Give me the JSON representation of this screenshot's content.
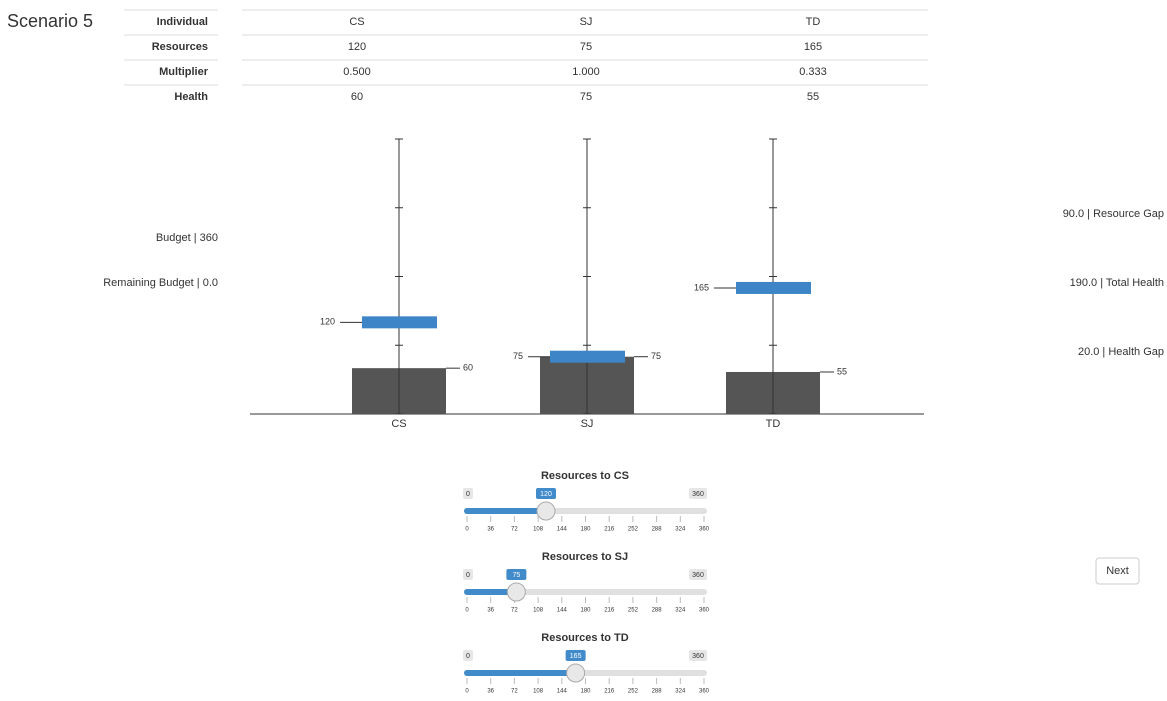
{
  "header": {
    "title": "Scenario 5"
  },
  "table": {
    "rows": [
      [
        "Individual",
        "CS",
        "SJ",
        "TD"
      ],
      [
        "Resources",
        "120",
        "75",
        "165"
      ],
      [
        "Multiplier",
        "0.500",
        "1.000",
        "0.333"
      ],
      [
        "Health",
        "60",
        "75",
        "55"
      ]
    ]
  },
  "chart": {
    "type": "bar",
    "categories": [
      "CS",
      "SJ",
      "TD"
    ],
    "health": {
      "color": "#555555",
      "values": [
        60,
        75,
        55
      ]
    },
    "resources": {
      "color": "#3d85c6",
      "values": [
        120,
        75,
        165
      ]
    },
    "ylim": [
      0,
      360
    ],
    "yticks": [
      0,
      90,
      180,
      270,
      360
    ]
  },
  "left_stats": [
    "Budget | 360",
    "Remaining Budget | 0.0"
  ],
  "right_stats": [
    "90.0 | Resource Gap",
    "190.0 | Total Health",
    "20.0 | Health Gap"
  ],
  "sliders": {
    "min": 0,
    "max": 360,
    "ticks": [
      0,
      36,
      72,
      108,
      144,
      180,
      216,
      252,
      288,
      324,
      360
    ],
    "items": [
      {
        "label": "Resources to CS",
        "value": 120
      },
      {
        "label": "Resources to SJ",
        "value": 75
      },
      {
        "label": "Resources to TD",
        "value": 165
      }
    ]
  },
  "button": {
    "label": "Next"
  }
}
